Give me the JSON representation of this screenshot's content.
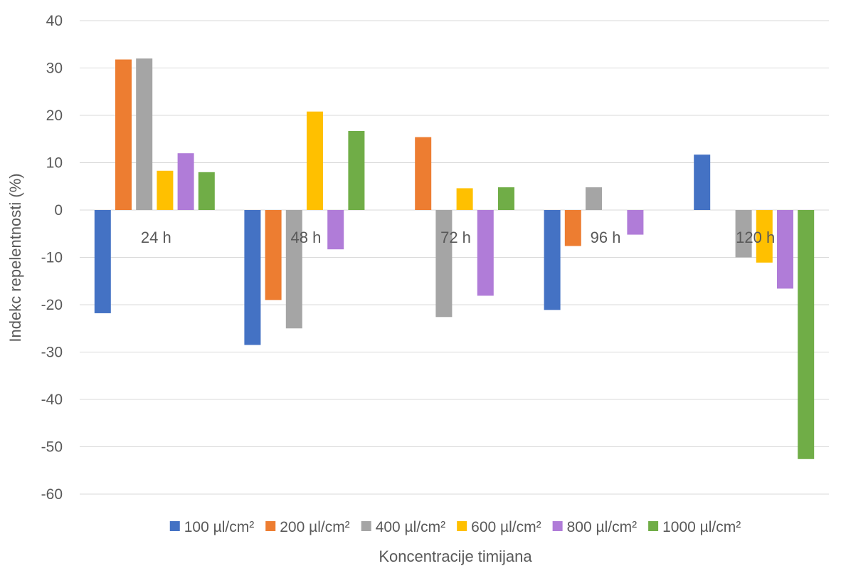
{
  "chart_data": {
    "type": "bar",
    "categories": [
      "24 h",
      "48 h",
      "72 h",
      "96 h",
      "120 h"
    ],
    "series": [
      {
        "name": "100 µl/cm²",
        "color": "#4472C4",
        "values": [
          -21.8,
          -28.5,
          0,
          -21.1,
          11.7
        ]
      },
      {
        "name": "200 µl/cm²",
        "color": "#ED7D31",
        "values": [
          31.8,
          -19.0,
          15.4,
          -7.6,
          0
        ]
      },
      {
        "name": "400 µl/cm²",
        "color": "#A5A5A5",
        "values": [
          32.0,
          -25.0,
          -22.6,
          4.8,
          -10.0
        ]
      },
      {
        "name": "600 µl/cm²",
        "color": "#FFC000",
        "values": [
          8.3,
          20.8,
          4.6,
          0,
          -11.1
        ]
      },
      {
        "name": "800 µl/cm²",
        "color": "#B07CD8",
        "values": [
          12.0,
          -8.3,
          -18.1,
          -5.2,
          -16.6
        ]
      },
      {
        "name": "1000 µl/cm²",
        "color": "#70AD47",
        "values": [
          8.0,
          16.7,
          4.8,
          0,
          -52.6
        ]
      }
    ],
    "title": "",
    "xlabel": "Koncentracije timijana",
    "ylabel": "Indekc repelentnosti (%)",
    "ylim": [
      -60,
      40
    ],
    "yticks": [
      40,
      30,
      20,
      10,
      0,
      -10,
      -20,
      -30,
      -40,
      -50,
      -60
    ],
    "grid": true,
    "legend": "bottom"
  }
}
